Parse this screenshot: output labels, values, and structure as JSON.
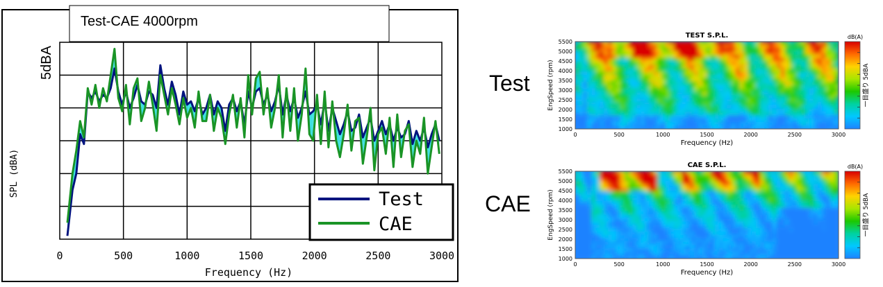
{
  "chart_data": [
    {
      "type": "line",
      "title": "Test-CAE 4000rpm",
      "xlabel": "Frequency (Hz)",
      "ylabel": "SPL (dBA)",
      "scale_annotation": "5dBA",
      "xlim": [
        0,
        3000
      ],
      "x_ticks": [
        "0",
        "500",
        "1000",
        "1500",
        "2000",
        "2500",
        "3000"
      ],
      "ylim": [
        0,
        6
      ],
      "grid": true,
      "legend_placement": "bottom-right",
      "fill_between_color": "#3ee0e0",
      "x": [
        60,
        100,
        130,
        160,
        190,
        220,
        250,
        280,
        310,
        340,
        370,
        400,
        430,
        460,
        490,
        520,
        550,
        580,
        610,
        640,
        670,
        700,
        730,
        760,
        790,
        820,
        850,
        880,
        910,
        940,
        970,
        1000,
        1030,
        1060,
        1090,
        1120,
        1150,
        1180,
        1210,
        1240,
        1270,
        1300,
        1330,
        1360,
        1390,
        1420,
        1450,
        1480,
        1510,
        1540,
        1570,
        1600,
        1630,
        1660,
        1690,
        1720,
        1750,
        1780,
        1810,
        1840,
        1870,
        1900,
        1930,
        1960,
        1990,
        2020,
        2050,
        2080,
        2110,
        2140,
        2170,
        2200,
        2230,
        2260,
        2290,
        2320,
        2350,
        2380,
        2410,
        2440,
        2470,
        2500,
        2530,
        2560,
        2590,
        2620,
        2650,
        2680,
        2710,
        2740,
        2770,
        2800,
        2830,
        2860,
        2890,
        2920,
        2950,
        2980
      ],
      "series": [
        {
          "name": "Test",
          "color": "#00137e",
          "values": [
            0.1,
            1.5,
            2.0,
            3.2,
            2.9,
            4.5,
            4.3,
            4.5,
            4.2,
            4.4,
            4.3,
            4.6,
            5.2,
            4.5,
            4.1,
            4.5,
            4.0,
            4.3,
            4.7,
            4.2,
            4.1,
            4.5,
            4.4,
            4.0,
            5.3,
            4.6,
            4.1,
            4.8,
            4.4,
            3.8,
            4.5,
            4.1,
            4.2,
            3.9,
            4.3,
            3.8,
            4.0,
            4.4,
            3.8,
            4.2,
            4.0,
            3.3,
            4.1,
            4.3,
            3.9,
            4.2,
            3.5,
            4.5,
            4.0,
            4.5,
            4.6,
            4.1,
            4.4,
            3.9,
            4.2,
            4.7,
            3.8,
            4.4,
            3.9,
            4.3,
            3.7,
            4.0,
            4.5,
            3.8,
            3.9,
            4.1,
            3.5,
            4.2,
            3.3,
            4.0,
            3.6,
            3.2,
            3.5,
            3.9,
            3.3,
            3.4,
            3.8,
            3.1,
            3.4,
            3.7,
            3.0,
            3.3,
            3.6,
            3.2,
            3.5,
            3.0,
            3.4,
            3.1,
            3.2,
            3.6,
            2.9,
            3.3,
            3.0,
            3.4,
            2.8,
            3.2,
            3.5,
            3.0
          ]
        },
        {
          "name": "CAE",
          "color": "#1a9426",
          "values": [
            0.5,
            2.0,
            2.7,
            3.6,
            3.1,
            4.6,
            4.1,
            4.7,
            4.0,
            4.6,
            4.2,
            5.0,
            5.8,
            4.3,
            3.9,
            4.7,
            3.5,
            4.6,
            4.9,
            3.6,
            4.0,
            4.8,
            4.1,
            3.3,
            5.0,
            4.4,
            3.8,
            4.6,
            4.1,
            3.5,
            4.3,
            3.7,
            4.0,
            3.4,
            4.5,
            3.6,
            3.6,
            4.4,
            3.3,
            4.0,
            3.7,
            2.9,
            3.8,
            4.4,
            3.4,
            4.3,
            3.1,
            5.0,
            3.8,
            4.9,
            5.1,
            3.8,
            4.6,
            3.4,
            4.0,
            5.0,
            3.1,
            4.6,
            3.3,
            4.6,
            3.0,
            3.8,
            5.2,
            3.2,
            3.0,
            4.4,
            2.9,
            4.5,
            2.8,
            4.2,
            3.0,
            2.5,
            3.2,
            4.1,
            2.7,
            3.6,
            3.7,
            2.3,
            3.1,
            4.0,
            2.1,
            3.2,
            3.4,
            2.6,
            3.7,
            2.2,
            3.8,
            2.5,
            3.3,
            3.5,
            2.2,
            3.0,
            2.6,
            3.7,
            2.0,
            2.8,
            3.6,
            2.6
          ]
        }
      ]
    },
    {
      "type": "heatmap",
      "row_label": "Test",
      "title": "TEST S.P.L.",
      "xlabel": "Frequency (Hz)",
      "ylabel": "EngSpeed (rpm)",
      "x_ticks": [
        "0",
        "500",
        "1000",
        "1500",
        "2000",
        "2500",
        "3000"
      ],
      "y_ticks": [
        "1000",
        "1500",
        "2000",
        "2500",
        "3000",
        "3500",
        "4000",
        "4500",
        "5000",
        "5500"
      ],
      "xlim": [
        0,
        3000
      ],
      "ylim": [
        1000,
        5500
      ],
      "colorbar_unit": "dB(A)",
      "colorbar_note": "一目盛り 5dBA",
      "colorbar_colors": [
        "#d90000",
        "#ff6a00",
        "#ffd200",
        "#a8e600",
        "#1cc800",
        "#00d2a0",
        "#00c8ff",
        "#1e82ff"
      ],
      "grid": false
    },
    {
      "type": "heatmap",
      "row_label": "CAE",
      "title": "CAE S.P.L.",
      "xlabel": "Frequency (Hz)",
      "ylabel": "EngSpeed (rpm)",
      "x_ticks": [
        "0",
        "500",
        "1000",
        "1500",
        "2000",
        "2500",
        "3000"
      ],
      "y_ticks": [
        "1000",
        "1500",
        "2000",
        "2500",
        "3000",
        "3500",
        "4000",
        "4500",
        "5000",
        "5500"
      ],
      "xlim": [
        0,
        3000
      ],
      "ylim": [
        1000,
        5500
      ],
      "colorbar_unit": "dB(A)",
      "colorbar_note": "一目盛り 5dBA",
      "colorbar_colors": [
        "#d90000",
        "#ff6a00",
        "#ffd200",
        "#a8e600",
        "#1cc800",
        "#00d2a0",
        "#00c8ff",
        "#1e82ff"
      ],
      "grid": false
    }
  ]
}
